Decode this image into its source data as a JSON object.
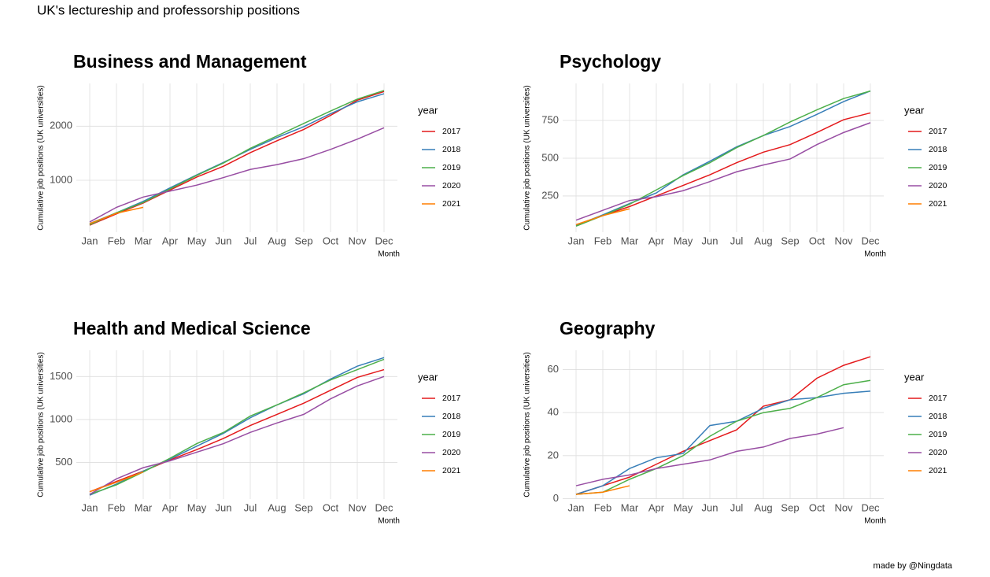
{
  "title": "UK's lectureship and professorship positions",
  "caption": "made by @Ningdata",
  "chart_data": [
    {
      "type": "line",
      "title": "Business and Management",
      "x_label": "Month",
      "y_label": "Cumulative job positions (UK universities)",
      "legend_title": "year",
      "grid": true,
      "categories": [
        "Jan",
        "Feb",
        "Mar",
        "Apr",
        "May",
        "Jun",
        "Jul",
        "Aug",
        "Sep",
        "Oct",
        "Nov",
        "Dec"
      ],
      "ylim": [
        40,
        2790
      ],
      "yticks": [
        1000,
        2000
      ],
      "series": [
        {
          "name": "2017",
          "color": "#e41a1c",
          "values": [
            170,
            380,
            580,
            820,
            1060,
            1260,
            1510,
            1730,
            1940,
            2200,
            2480,
            2640
          ]
        },
        {
          "name": "2018",
          "color": "#377eb8",
          "values": [
            200,
            400,
            610,
            860,
            1100,
            1330,
            1570,
            1790,
            1990,
            2230,
            2450,
            2600
          ]
        },
        {
          "name": "2019",
          "color": "#4daf4a",
          "values": [
            180,
            400,
            590,
            840,
            1090,
            1320,
            1590,
            1820,
            2050,
            2280,
            2500,
            2660
          ]
        },
        {
          "name": "2020",
          "color": "#984ea3",
          "values": [
            230,
            500,
            690,
            800,
            910,
            1050,
            1200,
            1290,
            1400,
            1570,
            1760,
            1970
          ]
        },
        {
          "name": "2021",
          "color": "#ff7f00",
          "values": [
            200,
            390,
            500,
            null,
            null,
            null,
            null,
            null,
            null,
            null,
            null,
            null
          ]
        }
      ]
    },
    {
      "type": "line",
      "title": "Psychology",
      "x_label": "Month",
      "y_label": "Cumulative job positions (UK universities)",
      "legend_title": "year",
      "grid": true,
      "categories": [
        "Jan",
        "Feb",
        "Mar",
        "Apr",
        "May",
        "Jun",
        "Jul",
        "Aug",
        "Sep",
        "Oct",
        "Nov",
        "Dec"
      ],
      "ylim": [
        10,
        995
      ],
      "yticks": [
        250,
        500,
        750
      ],
      "series": [
        {
          "name": "2017",
          "color": "#e41a1c",
          "values": [
            60,
            120,
            180,
            250,
            320,
            390,
            470,
            540,
            590,
            670,
            755,
            800
          ]
        },
        {
          "name": "2018",
          "color": "#377eb8",
          "values": [
            55,
            125,
            200,
            270,
            390,
            480,
            575,
            650,
            710,
            790,
            875,
            945
          ]
        },
        {
          "name": "2019",
          "color": "#4daf4a",
          "values": [
            50,
            120,
            195,
            290,
            385,
            470,
            570,
            650,
            740,
            820,
            895,
            945
          ]
        },
        {
          "name": "2020",
          "color": "#984ea3",
          "values": [
            90,
            155,
            220,
            245,
            285,
            345,
            410,
            455,
            495,
            590,
            670,
            735
          ]
        },
        {
          "name": "2021",
          "color": "#ff7f00",
          "values": [
            60,
            120,
            165,
            null,
            null,
            null,
            null,
            null,
            null,
            null,
            null,
            null
          ]
        }
      ]
    },
    {
      "type": "line",
      "title": "Health and Medical Science",
      "x_label": "Month",
      "y_label": "Cumulative job positions (UK universities)",
      "legend_title": "year",
      "grid": true,
      "categories": [
        "Jan",
        "Feb",
        "Mar",
        "Apr",
        "May",
        "Jun",
        "Jul",
        "Aug",
        "Sep",
        "Oct",
        "Nov",
        "Dec"
      ],
      "ylim": [
        75,
        1805
      ],
      "yticks": [
        500,
        1000,
        1500
      ],
      "series": [
        {
          "name": "2017",
          "color": "#e41a1c",
          "values": [
            160,
            280,
            400,
            530,
            650,
            780,
            930,
            1060,
            1190,
            1340,
            1490,
            1580
          ]
        },
        {
          "name": "2018",
          "color": "#377eb8",
          "values": [
            120,
            250,
            400,
            540,
            690,
            840,
            1020,
            1170,
            1300,
            1470,
            1620,
            1720
          ]
        },
        {
          "name": "2019",
          "color": "#4daf4a",
          "values": [
            130,
            240,
            390,
            550,
            720,
            850,
            1040,
            1170,
            1310,
            1460,
            1580,
            1700
          ]
        },
        {
          "name": "2020",
          "color": "#984ea3",
          "values": [
            130,
            310,
            440,
            520,
            620,
            720,
            850,
            960,
            1060,
            1240,
            1390,
            1500
          ]
        },
        {
          "name": "2021",
          "color": "#ff7f00",
          "values": [
            160,
            270,
            390,
            null,
            null,
            null,
            null,
            null,
            null,
            null,
            null,
            null
          ]
        }
      ]
    },
    {
      "type": "line",
      "title": "Geography",
      "x_label": "Month",
      "y_label": "Cumulative job positions (UK universities)",
      "legend_title": "year",
      "grid": true,
      "categories": [
        "Jan",
        "Feb",
        "Mar",
        "Apr",
        "May",
        "Jun",
        "Jul",
        "Aug",
        "Sep",
        "Oct",
        "Nov",
        "Dec"
      ],
      "ylim": [
        -0.2,
        69
      ],
      "yticks": [
        0,
        20,
        40,
        60
      ],
      "series": [
        {
          "name": "2017",
          "color": "#e41a1c",
          "values": [
            2,
            6,
            10,
            16,
            22,
            27,
            32,
            43,
            46,
            56,
            62,
            66
          ]
        },
        {
          "name": "2018",
          "color": "#377eb8",
          "values": [
            2,
            6,
            14,
            19,
            21,
            34,
            36,
            42,
            46,
            47,
            49,
            50
          ]
        },
        {
          "name": "2019",
          "color": "#4daf4a",
          "values": [
            2,
            3,
            9,
            14,
            20,
            29,
            36,
            40,
            42,
            47,
            53,
            55
          ]
        },
        {
          "name": "2020",
          "color": "#984ea3",
          "values": [
            6,
            9,
            11,
            14,
            16,
            18,
            22,
            24,
            28,
            30,
            33,
            null
          ]
        },
        {
          "name": "2021",
          "color": "#ff7f00",
          "values": [
            2,
            3,
            6,
            null,
            null,
            null,
            null,
            null,
            null,
            null,
            null,
            null
          ]
        }
      ]
    }
  ]
}
